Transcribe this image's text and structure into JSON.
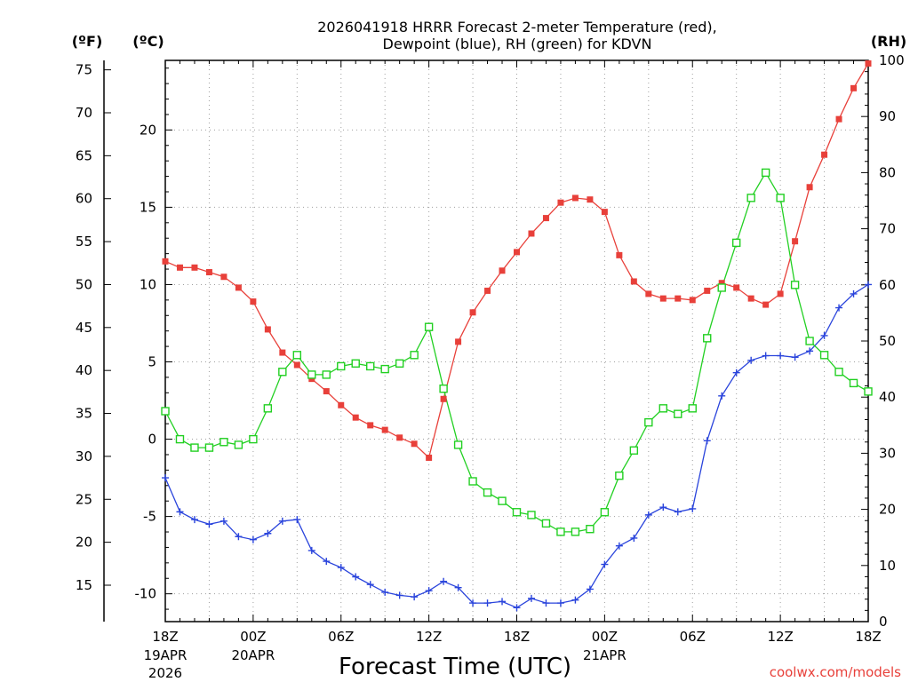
{
  "chart_data": {
    "type": "line",
    "title_line1": "2026041918 HRRR Forecast 2-meter Temperature (red),",
    "title_line2": "Dewpoint (blue), RH (green) for KDVN",
    "xlabel": "Forecast Time (UTC)",
    "credit": "coolwx.com/models",
    "units": {
      "fahrenheit": "(ºF)",
      "celsius": "(ºC)",
      "rh": "(RH)"
    },
    "x_range_hours": [
      0,
      48
    ],
    "x_ticks": [
      {
        "hour": 0,
        "label": "18Z",
        "sub1": "19APR",
        "sub2": "2026"
      },
      {
        "hour": 6,
        "label": "00Z",
        "sub1": "20APR",
        "sub2": ""
      },
      {
        "hour": 12,
        "label": "06Z",
        "sub1": "",
        "sub2": ""
      },
      {
        "hour": 18,
        "label": "12Z",
        "sub1": "",
        "sub2": ""
      },
      {
        "hour": 24,
        "label": "18Z",
        "sub1": "",
        "sub2": ""
      },
      {
        "hour": 30,
        "label": "00Z",
        "sub1": "21APR",
        "sub2": ""
      },
      {
        "hour": 36,
        "label": "06Z",
        "sub1": "",
        "sub2": ""
      },
      {
        "hour": 42,
        "label": "12Z",
        "sub1": "",
        "sub2": ""
      },
      {
        "hour": 48,
        "label": "18Z",
        "sub1": "",
        "sub2": ""
      }
    ],
    "celsius_range": [
      -11.8,
      24.5
    ],
    "celsius_ticks": [
      "-10",
      "-5",
      "0",
      "5",
      "10",
      "15",
      "20"
    ],
    "fahrenheit_ticks": [
      "15",
      "20",
      "25",
      "30",
      "35",
      "40",
      "45",
      "50",
      "55",
      "60",
      "65",
      "70",
      "75"
    ],
    "rh_range": [
      0,
      100
    ],
    "rh_ticks": [
      "0",
      "10",
      "20",
      "30",
      "40",
      "50",
      "60",
      "70",
      "80",
      "90",
      "100"
    ],
    "colors": {
      "temperature": "#e8403a",
      "dewpoint": "#2a44dc",
      "rh": "#22d022",
      "grid": "#a0a0a0"
    },
    "series": [
      {
        "name": "Temperature (°C)",
        "axis": "celsius",
        "marker": "filled-square",
        "values": [
          11.5,
          11.1,
          11.1,
          10.8,
          10.5,
          9.8,
          8.9,
          7.1,
          5.6,
          4.8,
          3.9,
          3.1,
          2.2,
          1.4,
          0.9,
          0.6,
          0.1,
          -0.3,
          -1.2,
          2.6,
          6.3,
          8.2,
          9.6,
          10.9,
          12.1,
          13.3,
          14.3,
          15.3,
          15.6,
          15.5,
          14.7,
          11.9,
          10.2,
          9.4,
          9.1,
          9.1,
          9.0,
          9.6,
          10.1,
          9.8,
          9.1,
          8.7,
          9.4,
          12.8,
          16.3,
          18.4,
          20.7,
          22.7,
          24.3
        ]
      },
      {
        "name": "Dewpoint (°C)",
        "axis": "celsius",
        "marker": "plus",
        "values": [
          -2.5,
          -4.7,
          -5.2,
          -5.5,
          -5.3,
          -6.3,
          -6.5,
          -6.1,
          -5.3,
          -5.2,
          -7.2,
          -7.9,
          -8.3,
          -8.9,
          -9.4,
          -9.9,
          -10.1,
          -10.2,
          -9.8,
          -9.2,
          -9.6,
          -10.6,
          -10.6,
          -10.5,
          -10.9,
          -10.3,
          -10.6,
          -10.6,
          -10.4,
          -9.7,
          -8.1,
          -6.9,
          -6.4,
          -4.9,
          -4.4,
          -4.7,
          -4.5,
          -0.1,
          2.8,
          4.3,
          5.1,
          5.4,
          5.4,
          5.3,
          5.7,
          6.7,
          8.5,
          9.4,
          10.0
        ]
      },
      {
        "name": "RH (%)",
        "axis": "rh",
        "marker": "open-square",
        "values": [
          37.5,
          32.5,
          31.0,
          31.0,
          32.0,
          31.5,
          32.5,
          38.0,
          44.5,
          47.5,
          44.0,
          44.0,
          45.5,
          46.0,
          45.5,
          45.0,
          46.0,
          47.5,
          52.5,
          41.5,
          31.5,
          25.0,
          23.0,
          21.5,
          19.5,
          19.0,
          17.5,
          16.0,
          16.0,
          16.5,
          19.5,
          26.0,
          30.5,
          35.5,
          38.0,
          37.0,
          38.0,
          50.5,
          59.5,
          67.5,
          75.5,
          80.0,
          75.5,
          60.0,
          50.0,
          47.5,
          44.5,
          42.5,
          41.0
        ]
      }
    ]
  }
}
